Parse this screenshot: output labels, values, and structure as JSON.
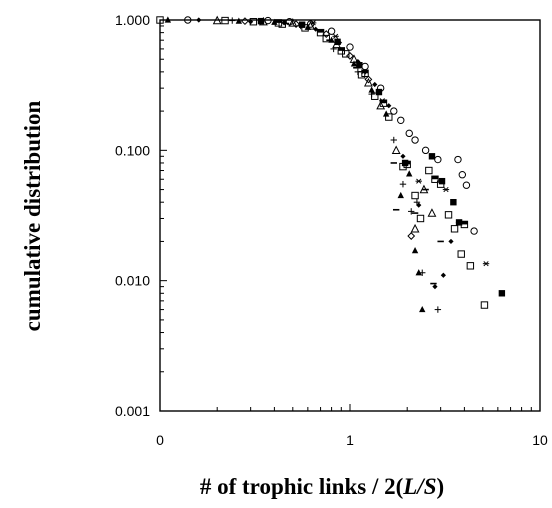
{
  "chart_data": {
    "type": "scatter",
    "title": "",
    "xlabel_parts": [
      "# of trophic links / 2(",
      "L/S",
      ")"
    ],
    "ylabel": "cumulative distribution",
    "x_scale": "log",
    "y_scale": "log",
    "xlim": [
      0.1,
      10
    ],
    "ylim": [
      0.001,
      1
    ],
    "x_ticks": [
      {
        "value": 0.1,
        "label": "0"
      },
      {
        "value": 1,
        "label": "1"
      },
      {
        "value": 10,
        "label": "10"
      }
    ],
    "y_ticks": [
      {
        "value": 1,
        "label": "1.000"
      },
      {
        "value": 0.1,
        "label": "0.100"
      },
      {
        "value": 0.01,
        "label": "0.010"
      },
      {
        "value": 0.001,
        "label": "0.001"
      }
    ],
    "grid": false,
    "legend": "none",
    "series": [
      {
        "marker": "circle-open",
        "points": [
          [
            0.14,
            1.0
          ],
          [
            0.37,
            0.99
          ],
          [
            0.48,
            0.97
          ],
          [
            0.62,
            0.93
          ],
          [
            0.8,
            0.82
          ],
          [
            1.0,
            0.62
          ],
          [
            1.2,
            0.44
          ],
          [
            1.45,
            0.3
          ],
          [
            1.7,
            0.2
          ],
          [
            2.05,
            0.135
          ],
          [
            2.5,
            0.1
          ],
          [
            2.9,
            0.085
          ],
          [
            3.7,
            0.085
          ],
          [
            3.9,
            0.065
          ],
          [
            4.1,
            0.054
          ],
          [
            4.5,
            0.024
          ],
          [
            2.2,
            0.12
          ],
          [
            1.85,
            0.17
          ]
        ]
      },
      {
        "marker": "square-open",
        "points": [
          [
            0.1,
            1.0
          ],
          [
            0.22,
            0.99
          ],
          [
            0.31,
            0.97
          ],
          [
            0.44,
            0.93
          ],
          [
            0.58,
            0.87
          ],
          [
            0.75,
            0.72
          ],
          [
            0.95,
            0.55
          ],
          [
            1.15,
            0.38
          ],
          [
            1.35,
            0.26
          ],
          [
            1.6,
            0.18
          ],
          [
            1.9,
            0.075
          ],
          [
            2.2,
            0.045
          ],
          [
            2.35,
            0.03
          ],
          [
            2.6,
            0.07
          ],
          [
            3.0,
            0.055
          ],
          [
            3.3,
            0.032
          ],
          [
            3.55,
            0.025
          ],
          [
            3.85,
            0.016
          ],
          [
            4.3,
            0.013
          ],
          [
            5.1,
            0.0065
          ]
        ]
      },
      {
        "marker": "triangle-open",
        "points": [
          [
            0.2,
            0.99
          ],
          [
            0.35,
            0.97
          ],
          [
            0.5,
            0.95
          ],
          [
            0.62,
            0.9
          ],
          [
            0.85,
            0.65
          ],
          [
            1.05,
            0.5
          ],
          [
            1.25,
            0.33
          ],
          [
            1.45,
            0.22
          ],
          [
            1.75,
            0.1
          ],
          [
            2.2,
            0.025
          ],
          [
            2.45,
            0.05
          ],
          [
            2.7,
            0.033
          ]
        ]
      },
      {
        "marker": "triangle-filled",
        "points": [
          [
            0.11,
            1.0
          ],
          [
            0.26,
            0.98
          ],
          [
            0.4,
            0.96
          ],
          [
            0.6,
            0.88
          ],
          [
            0.8,
            0.7
          ],
          [
            1.05,
            0.46
          ],
          [
            1.3,
            0.29
          ],
          [
            1.55,
            0.19
          ],
          [
            1.85,
            0.045
          ],
          [
            2.05,
            0.066
          ],
          [
            2.2,
            0.017
          ],
          [
            2.3,
            0.0115
          ],
          [
            2.4,
            0.006
          ]
        ]
      },
      {
        "marker": "diamond-filled",
        "points": [
          [
            0.16,
            1.0
          ],
          [
            0.3,
            0.97
          ],
          [
            0.45,
            0.95
          ],
          [
            0.66,
            0.85
          ],
          [
            0.88,
            0.67
          ],
          [
            1.1,
            0.48
          ],
          [
            1.35,
            0.32
          ],
          [
            1.6,
            0.22
          ],
          [
            1.9,
            0.09
          ],
          [
            2.3,
            0.038
          ],
          [
            2.8,
            0.009
          ],
          [
            3.1,
            0.011
          ],
          [
            3.4,
            0.02
          ]
        ]
      },
      {
        "marker": "diamond-open",
        "points": [
          [
            0.28,
            0.98
          ],
          [
            0.52,
            0.93
          ],
          [
            0.75,
            0.78
          ],
          [
            1.0,
            0.53
          ],
          [
            1.25,
            0.35
          ],
          [
            2.1,
            0.022
          ]
        ]
      },
      {
        "marker": "square-filled",
        "points": [
          [
            0.34,
            0.98
          ],
          [
            0.56,
            0.92
          ],
          [
            0.86,
            0.68
          ],
          [
            1.12,
            0.45
          ],
          [
            1.42,
            0.28
          ],
          [
            1.95,
            0.08
          ],
          [
            2.7,
            0.09
          ],
          [
            3.05,
            0.058
          ],
          [
            3.5,
            0.04
          ],
          [
            3.75,
            0.028
          ],
          [
            6.3,
            0.008
          ]
        ]
      },
      {
        "marker": "square-half",
        "points": [
          [
            0.42,
            0.95
          ],
          [
            0.7,
            0.8
          ],
          [
            0.9,
            0.58
          ],
          [
            1.2,
            0.39
          ],
          [
            1.5,
            0.23
          ],
          [
            2.0,
            0.078
          ],
          [
            2.8,
            0.06
          ],
          [
            4.0,
            0.027
          ]
        ]
      },
      {
        "marker": "asterisk",
        "points": [
          [
            0.64,
            0.95
          ],
          [
            0.84,
            0.75
          ],
          [
            1.18,
            0.4
          ],
          [
            1.48,
            0.24
          ],
          [
            2.3,
            0.058
          ],
          [
            3.2,
            0.05
          ],
          [
            3.75,
            0.028
          ],
          [
            5.2,
            0.0135
          ]
        ]
      },
      {
        "marker": "plus",
        "points": [
          [
            0.24,
            0.99
          ],
          [
            0.55,
            0.9
          ],
          [
            0.82,
            0.6
          ],
          [
            1.1,
            0.4
          ],
          [
            1.3,
            0.27
          ],
          [
            1.7,
            0.12
          ],
          [
            1.9,
            0.055
          ],
          [
            2.1,
            0.034
          ],
          [
            2.25,
            0.04
          ],
          [
            2.4,
            0.0115
          ],
          [
            2.9,
            0.006
          ]
        ]
      },
      {
        "marker": "dash",
        "points": [
          [
            0.46,
            0.94
          ],
          [
            0.78,
            0.7
          ],
          [
            1.08,
            0.43
          ],
          [
            1.7,
            0.08
          ],
          [
            1.75,
            0.035
          ],
          [
            2.2,
            0.033
          ],
          [
            2.5,
            0.05
          ],
          [
            2.75,
            0.0095
          ],
          [
            3.0,
            0.02
          ]
        ]
      }
    ]
  }
}
